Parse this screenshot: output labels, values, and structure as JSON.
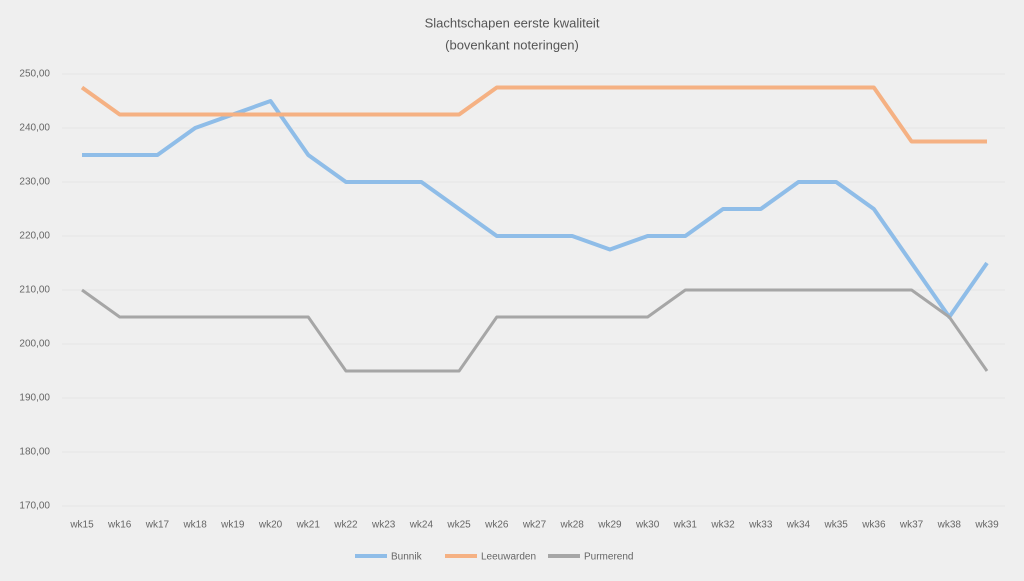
{
  "chart_data": {
    "type": "line",
    "title": "Slachtschapen eerste kwaliteit",
    "subtitle": "(bovenkant noteringen)",
    "categories": [
      "wk15",
      "wk16",
      "wk17",
      "wk18",
      "wk19",
      "wk20",
      "wk21",
      "wk22",
      "wk23",
      "wk24",
      "wk25",
      "wk26",
      "wk27",
      "wk28",
      "wk29",
      "wk30",
      "wk31",
      "wk32",
      "wk33",
      "wk34",
      "wk35",
      "wk36",
      "wk37",
      "wk38",
      "wk39"
    ],
    "series": [
      {
        "name": "Bunnik",
        "color": "#8fbde8",
        "values": [
          235,
          235,
          235,
          240,
          242.5,
          245,
          235,
          230,
          230,
          230,
          225,
          220,
          220,
          220,
          217.5,
          220,
          220,
          225,
          225,
          230,
          230,
          225,
          215,
          205,
          215
        ]
      },
      {
        "name": "Leeuwarden",
        "color": "#f5b183",
        "values": [
          247.5,
          242.5,
          242.5,
          242.5,
          242.5,
          242.5,
          242.5,
          242.5,
          242.5,
          242.5,
          242.5,
          247.5,
          247.5,
          247.5,
          247.5,
          247.5,
          247.5,
          247.5,
          247.5,
          247.5,
          247.5,
          247.5,
          237.5,
          237.5,
          237.5
        ]
      },
      {
        "name": "Purmerend",
        "color": "#a6a6a6",
        "values": [
          210,
          205,
          205,
          205,
          205,
          205,
          205,
          195,
          195,
          195,
          195,
          205,
          205,
          205,
          205,
          205,
          210,
          210,
          210,
          210,
          210,
          210,
          210,
          205,
          195
        ]
      }
    ],
    "ylim": [
      170,
      250
    ],
    "yticks": [
      {
        "value": 170,
        "label": "170,00"
      },
      {
        "value": 180,
        "label": "180,00"
      },
      {
        "value": 190,
        "label": "190,00"
      },
      {
        "value": 200,
        "label": "200,00"
      },
      {
        "value": 210,
        "label": "210,00"
      },
      {
        "value": 220,
        "label": "220,00"
      },
      {
        "value": 230,
        "label": "230,00"
      },
      {
        "value": 240,
        "label": "240,00"
      },
      {
        "value": 250,
        "label": "250,00"
      }
    ],
    "grid": true,
    "legend": "bottom"
  }
}
